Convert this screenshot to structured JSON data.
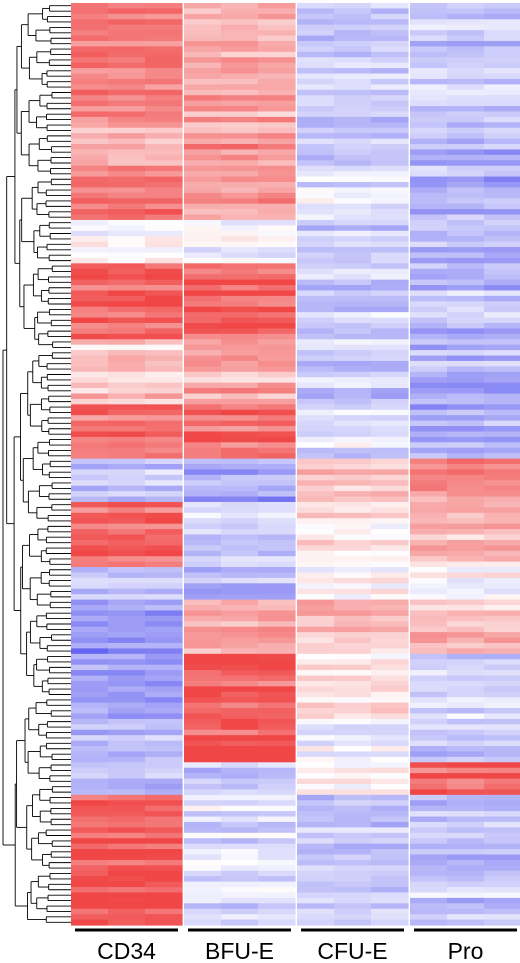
{
  "chart_data": {
    "type": "heatmap",
    "title": "",
    "xlabel": "",
    "ylabel": "",
    "dendrogram": "left",
    "colormap": {
      "low": "#5a5af0",
      "mid": "#ffffff",
      "high": "#f04646"
    },
    "value_range": [
      -1,
      1
    ],
    "groups": [
      {
        "label": "CD34",
        "replicates": 3
      },
      {
        "label": "BFU-E",
        "replicates": 3
      },
      {
        "label": "CFU-E",
        "replicates": 3
      },
      {
        "label": "Pro",
        "replicates": 3
      }
    ],
    "row_blocks": [
      {
        "rows": 22,
        "values": [
          0.75,
          0.5,
          -0.25,
          -0.35
        ]
      },
      {
        "rows": 10,
        "values": [
          0.5,
          0.55,
          -0.25,
          -0.45
        ]
      },
      {
        "rows": 8,
        "values": [
          0.85,
          0.55,
          -0.2,
          -0.5
        ]
      },
      {
        "rows": 8,
        "values": [
          0.0,
          -0.1,
          -0.3,
          -0.45
        ]
      },
      {
        "rows": 14,
        "values": [
          0.8,
          0.85,
          -0.3,
          -0.4
        ]
      },
      {
        "rows": 12,
        "values": [
          0.3,
          0.45,
          -0.3,
          -0.45
        ]
      },
      {
        "rows": 10,
        "values": [
          0.75,
          0.75,
          -0.2,
          -0.45
        ]
      },
      {
        "rows": 8,
        "values": [
          -0.35,
          -0.55,
          0.35,
          0.55
        ]
      },
      {
        "rows": 12,
        "values": [
          0.8,
          -0.2,
          0.15,
          0.3
        ]
      },
      {
        "rows": 6,
        "values": [
          -0.4,
          -0.35,
          0.1,
          0.05
        ]
      },
      {
        "rows": 10,
        "values": [
          -0.65,
          0.5,
          0.3,
          0.35
        ]
      },
      {
        "rows": 12,
        "values": [
          -0.5,
          0.85,
          0.15,
          -0.2
        ]
      },
      {
        "rows": 8,
        "values": [
          -0.45,
          0.9,
          -0.1,
          -0.3
        ]
      },
      {
        "rows": 6,
        "values": [
          -0.35,
          -0.4,
          0.1,
          0.85
        ]
      },
      {
        "rows": 24,
        "values": [
          0.9,
          -0.2,
          -0.3,
          -0.35
        ]
      }
    ]
  }
}
